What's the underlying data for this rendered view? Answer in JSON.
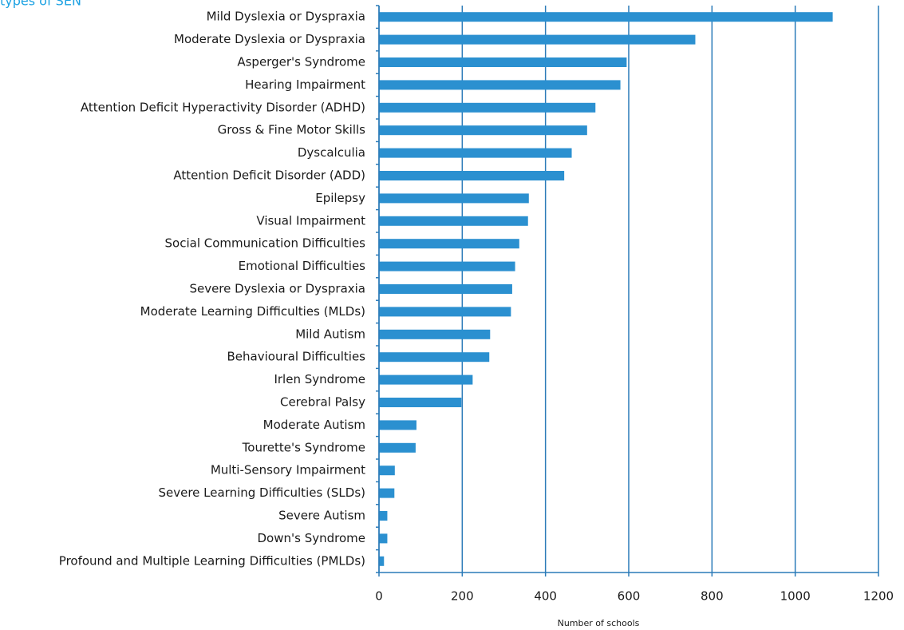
{
  "chart_data": {
    "type": "barh",
    "title": "types of SEN",
    "x_label": "Number of schools",
    "categories": [
      "Mild Dyslexia or Dyspraxia",
      "Moderate Dyslexia or Dyspraxia",
      "Asperger's Syndrome",
      "Hearing Impairment",
      "Attention Deficit Hyperactivity Disorder (ADHD)",
      "Gross & Fine Motor Skills",
      "Dyscalculia",
      "Attention Deficit Disorder (ADD)",
      "Epilepsy",
      "Visual Impairment",
      "Social Communication Difficulties",
      "Emotional Difficulties",
      "Severe Dyslexia or Dyspraxia",
      "Moderate Learning Difficulties (MLDs)",
      "Mild Autism",
      "Behavioural Difficulties",
      "Irlen Syndrome",
      "Cerebral Palsy",
      "Moderate Autism",
      "Tourette's Syndrome",
      "Multi-Sensory Impairment",
      "Severe Learning Difficulties (SLDs)",
      "Severe Autism",
      "Down's Syndrome",
      "Profound and Multiple Learning Difficulties (PMLDs)"
    ],
    "values": [
      1090,
      760,
      595,
      580,
      520,
      500,
      463,
      445,
      360,
      358,
      337,
      327,
      320,
      317,
      267,
      265,
      225,
      198,
      90,
      88,
      38,
      37,
      20,
      20,
      12
    ],
    "color": "#2b90d0",
    "xlim": [
      0,
      1200
    ],
    "xticks": [
      0,
      200,
      400,
      600,
      800,
      1000,
      1200
    ],
    "grid": true
  }
}
